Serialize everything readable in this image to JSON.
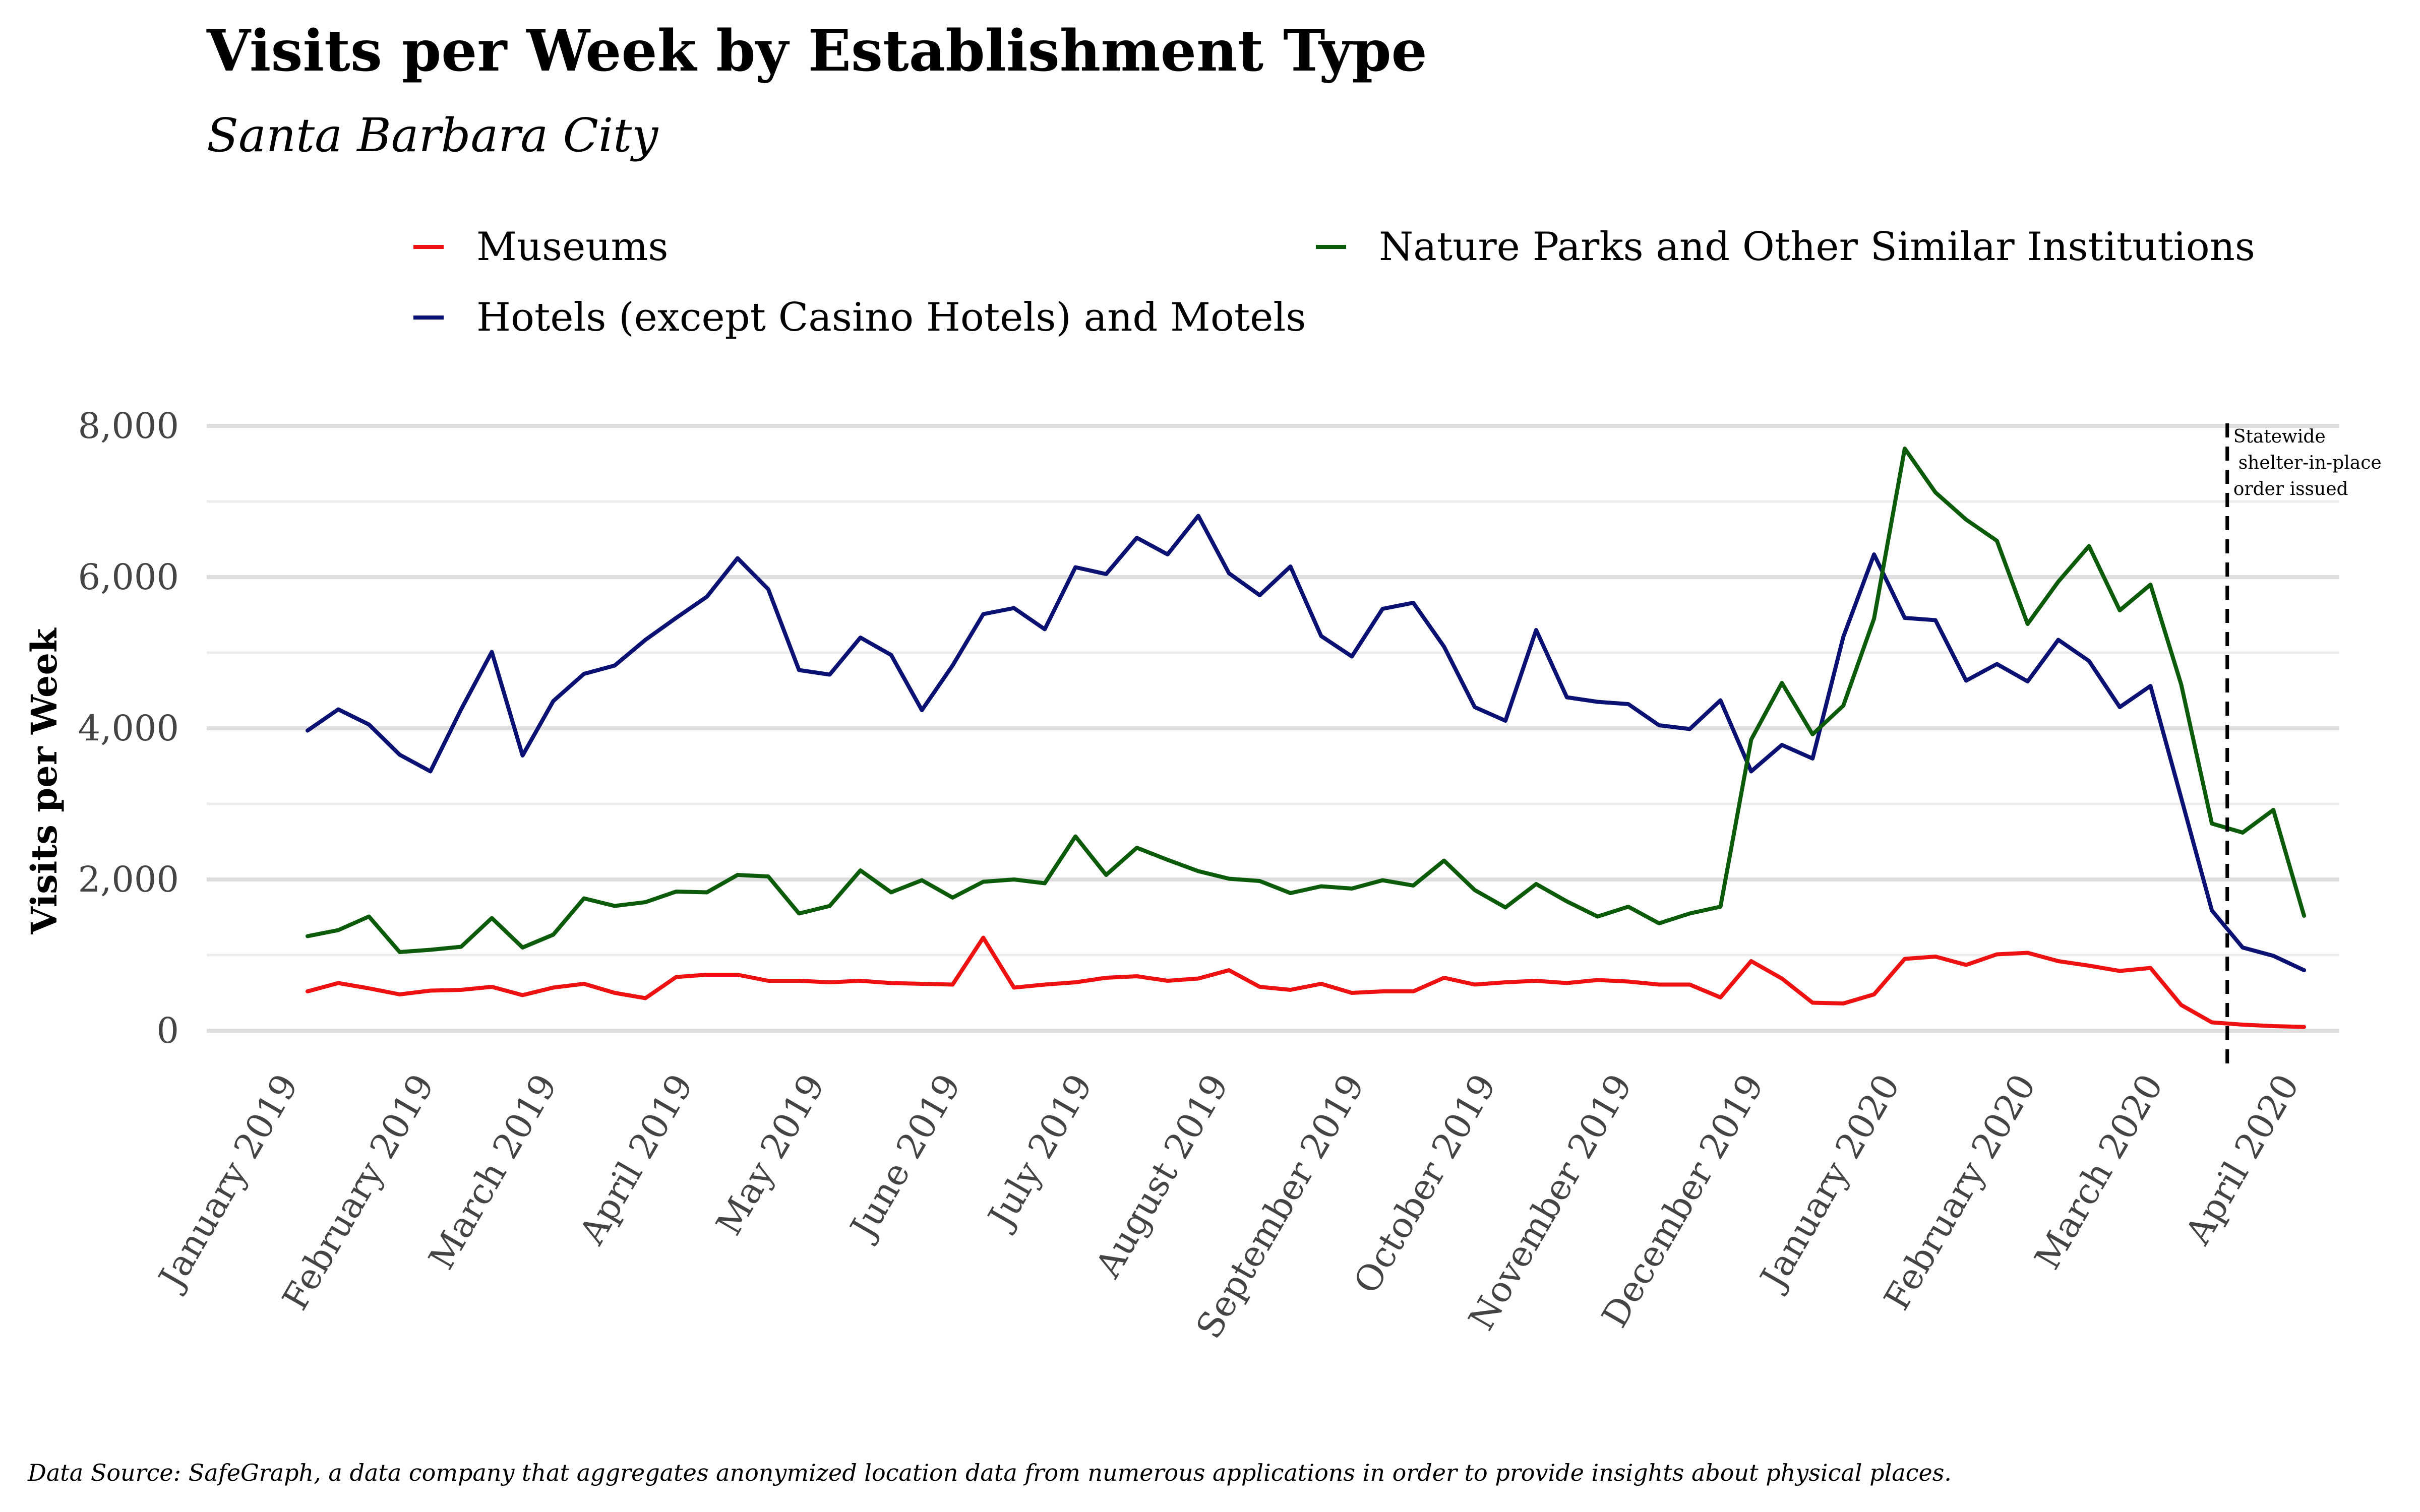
{
  "chart_data": {
    "type": "line",
    "title": "Visits per Week by Establishment Type",
    "subtitle": "Santa Barbara City",
    "ylabel": "Visits per Week",
    "xlabel": "",
    "ylim": [
      0,
      8000
    ],
    "y_ticks": [
      0,
      2000,
      4000,
      6000,
      8000
    ],
    "y_tick_labels": [
      "0",
      "2,000",
      "4,000",
      "6,000",
      "8,000"
    ],
    "x_tick_labels": [
      "January 2019",
      "February 2019",
      "March 2019",
      "April 2019",
      "May 2019",
      "June 2019",
      "July 2019",
      "August 2019",
      "September 2019",
      "October 2019",
      "November 2019",
      "December 2019",
      "January 2020",
      "February 2020",
      "March 2020",
      "April 2020"
    ],
    "x_start": "2019-01-07",
    "week_count": 66,
    "grid": true,
    "legend_position": "top",
    "series": [
      {
        "name": "Museums",
        "color": "#ee1111",
        "values": [
          520,
          630,
          560,
          480,
          530,
          540,
          580,
          470,
          570,
          620,
          500,
          430,
          710,
          740,
          740,
          660,
          660,
          640,
          660,
          630,
          620,
          610,
          1230,
          570,
          610,
          640,
          700,
          720,
          660,
          690,
          800,
          580,
          540,
          620,
          500,
          520,
          520,
          700,
          610,
          640,
          660,
          630,
          670,
          650,
          610,
          610,
          440,
          920,
          690,
          370,
          360,
          480,
          950,
          980,
          870,
          1010,
          1030,
          920,
          860,
          790,
          830,
          340,
          110,
          80,
          60,
          50
        ]
      },
      {
        "name": "Hotels (except Casino Hotels) and Motels",
        "color": "#0a1172",
        "values": [
          3970,
          4250,
          4050,
          3650,
          3430,
          4250,
          5010,
          3640,
          4360,
          4720,
          4830,
          5170,
          5460,
          5740,
          6250,
          5840,
          4770,
          4710,
          5200,
          4970,
          4240,
          4830,
          5510,
          5590,
          5310,
          6130,
          6040,
          6520,
          6300,
          6810,
          6050,
          5760,
          6140,
          5220,
          4950,
          5580,
          5660,
          5080,
          4280,
          4100,
          5300,
          4410,
          4350,
          4320,
          4040,
          3990,
          4370,
          3430,
          3780,
          3600,
          5210,
          6300,
          5460,
          5430,
          4630,
          4850,
          4620,
          5170,
          4890,
          4280,
          4560,
          3080,
          1590,
          1100,
          990,
          800
        ]
      },
      {
        "name": "Nature Parks and Other Similar Institutions",
        "color": "#0b5b0b",
        "values": [
          1250,
          1330,
          1510,
          1040,
          1070,
          1110,
          1490,
          1100,
          1270,
          1750,
          1650,
          1700,
          1840,
          1830,
          2060,
          2040,
          1550,
          1650,
          2120,
          1830,
          1990,
          1760,
          1970,
          2000,
          1950,
          2570,
          2060,
          2420,
          2260,
          2110,
          2010,
          1980,
          1820,
          1910,
          1880,
          1990,
          1920,
          2250,
          1860,
          1630,
          1940,
          1710,
          1510,
          1640,
          1420,
          1550,
          1640,
          3850,
          4600,
          3920,
          4300,
          5450,
          7700,
          7120,
          6760,
          6480,
          5380,
          5940,
          6410,
          5560,
          5900,
          4580,
          2740,
          2620,
          2920,
          1520
        ]
      }
    ],
    "annotations": [
      {
        "week_index": 62.5,
        "text_lines": [
          "Statewide",
          "shelter-in-place",
          "order issued"
        ]
      }
    ],
    "caption": "Data Source: SafeGraph, a data company that aggregates anonymized location data from numerous applications in order to provide insights about physical places."
  }
}
